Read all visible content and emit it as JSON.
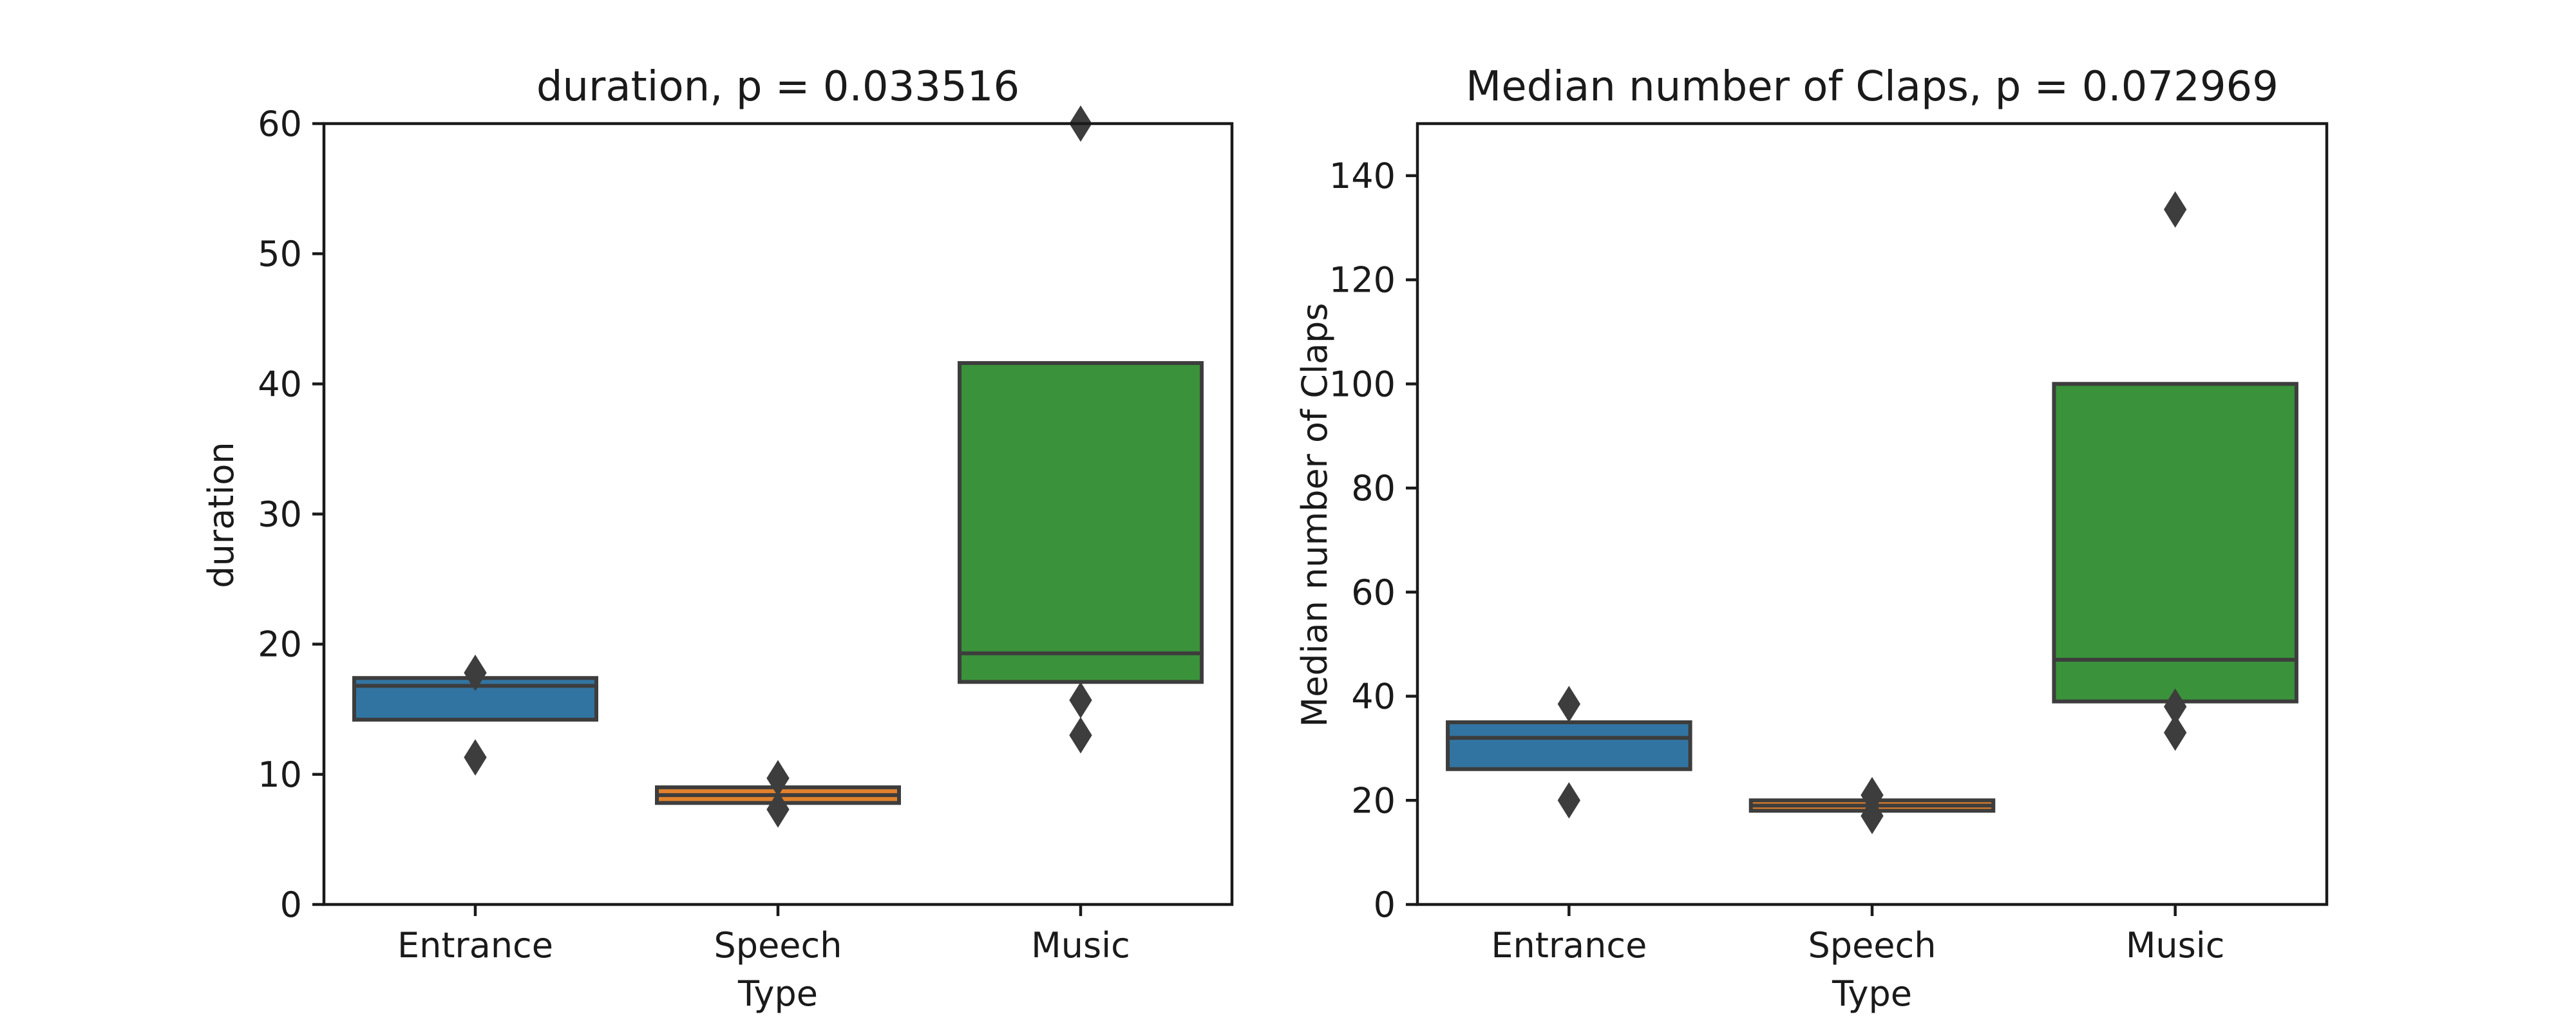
{
  "chart_data": [
    {
      "type": "boxen",
      "title": "duration, p = 0.033516",
      "xlabel": "Type",
      "ylabel": "duration",
      "categories": [
        "Entrance",
        "Speech",
        "Music"
      ],
      "colors": [
        "#3274a1",
        "#e1812c",
        "#3a923a"
      ],
      "ylim": [
        0,
        60
      ],
      "yticks": [
        0,
        10,
        20,
        30,
        40,
        50,
        60
      ],
      "grid": false,
      "boxes": [
        {
          "category": "Entrance",
          "low": 14.2,
          "high": 17.4,
          "median": 16.8,
          "outliers": [
            17.8,
            11.3
          ]
        },
        {
          "category": "Speech",
          "low": 7.8,
          "high": 9.0,
          "median": 8.4,
          "outliers": [
            9.7,
            7.3
          ]
        },
        {
          "category": "Music",
          "low": 17.1,
          "high": 41.6,
          "median": 19.3,
          "outliers": [
            60.0,
            15.7,
            13.0
          ]
        }
      ]
    },
    {
      "type": "boxen",
      "title": "Median number of Claps, p = 0.072969",
      "xlabel": "Type",
      "ylabel": "Median number of Claps",
      "categories": [
        "Entrance",
        "Speech",
        "Music"
      ],
      "colors": [
        "#3274a1",
        "#e1812c",
        "#3a923a"
      ],
      "ylim": [
        0,
        150
      ],
      "yticks": [
        0,
        20,
        40,
        60,
        80,
        100,
        120,
        140
      ],
      "grid": false,
      "boxes": [
        {
          "category": "Entrance",
          "low": 26,
          "high": 35,
          "median": 32,
          "outliers": [
            38.5,
            20
          ]
        },
        {
          "category": "Speech",
          "low": 18,
          "high": 20,
          "median": 19,
          "outliers": [
            21,
            17
          ]
        },
        {
          "category": "Music",
          "low": 39,
          "high": 100,
          "median": 47,
          "outliers": [
            133.5,
            38,
            33
          ]
        }
      ]
    }
  ]
}
